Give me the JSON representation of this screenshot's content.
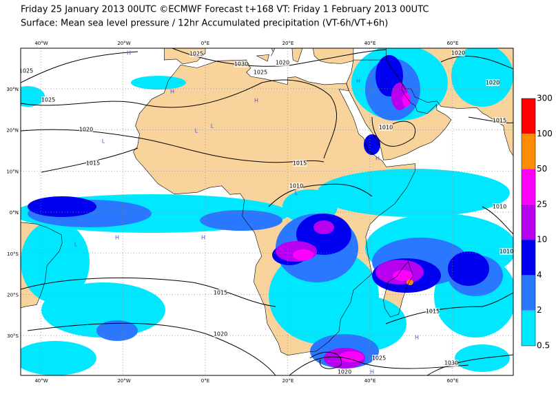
{
  "header": {
    "title": "Friday 25 January 2013 00UTC ©ECMWF Forecast t+168 VT: Friday 1 February 2013 00UTC",
    "subtitle": "Surface: Mean sea level pressure / 12hr Accumulated precipitation (VT-6h/VT+6h)"
  },
  "map": {
    "lon_labels": [
      "40°W",
      "20°W",
      "0°E",
      "20°E",
      "40°E",
      "60°E"
    ],
    "lat_labels": [
      "30°N",
      "20°N",
      "10°N",
      "0°N",
      "10°S",
      "20°S",
      "30°S"
    ],
    "isobar_labels": [
      "1025",
      "1025",
      "1030",
      "1025",
      "1020",
      "1020",
      "1020",
      "1025",
      "1020",
      "1015",
      "1015",
      "1010",
      "1015",
      "1010",
      "1010",
      "1010",
      "1015",
      "1015",
      "1020",
      "1020",
      "1025",
      "1030"
    ],
    "pressure_centers": [
      "H",
      "H",
      "H",
      "H",
      "L",
      "L",
      "L",
      "H",
      "L",
      "H",
      "H",
      "L",
      "H",
      "H"
    ]
  },
  "colorbar": {
    "labels": [
      "300",
      "100",
      "50",
      "25",
      "10",
      "4",
      "2",
      "0.5"
    ],
    "colors": [
      "#ff0000",
      "#ff8c00",
      "#ff00ff",
      "#b800f0",
      "#0000f0",
      "#2a78ff",
      "#00e8ff"
    ]
  }
}
